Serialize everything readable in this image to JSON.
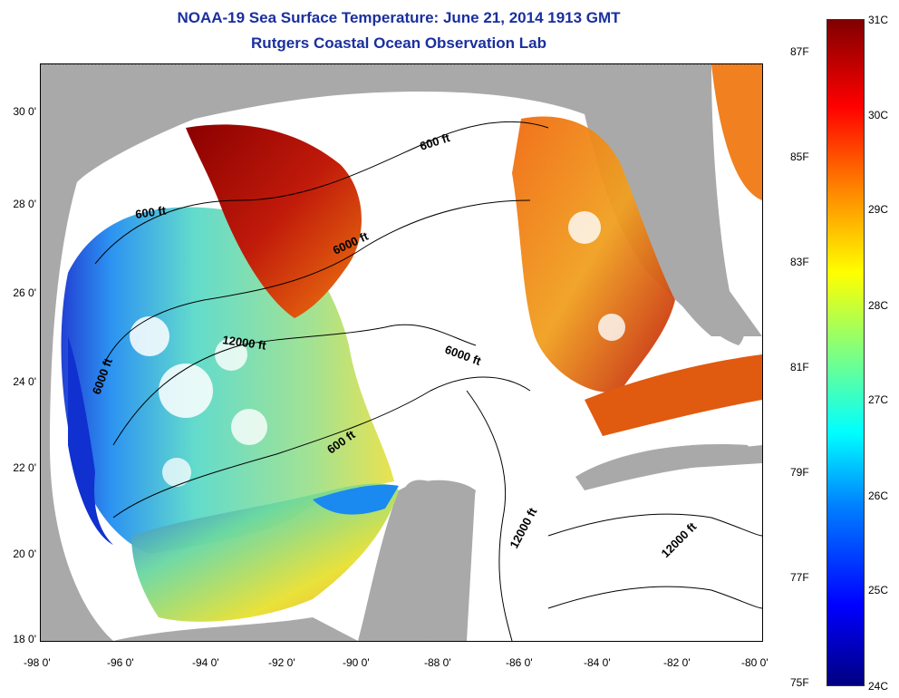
{
  "title": {
    "line1": "NOAA-19 Sea Surface Temperature:  June 21, 2014 1913 GMT",
    "line2": "Rutgers Coastal Ocean Observation Lab"
  },
  "map": {
    "lat_labels": [
      "30 0'",
      "28 0'",
      "26 0'",
      "24 0'",
      "22 0'",
      "20 0'",
      "18 0'"
    ],
    "lon_labels": [
      "-98 0'",
      "-96 0'",
      "-94 0'",
      "-92 0'",
      "-90 0'",
      "-88 0'",
      "-86 0'",
      "-84 0'",
      "-82 0'",
      "-80 0'"
    ],
    "contour_labels": {
      "c600_ne": "600 ft",
      "c600_nw": "600 ft",
      "c600_mid": "600 ft",
      "c6000_n": "6000 ft",
      "c6000_w": "6000 ft",
      "c6000_c": "6000 ft",
      "c12000_w": "12000 ft",
      "c12000_s": "12000 ft",
      "c12000_se": "12000 ft"
    },
    "colors": {
      "land": "#a9a9a9",
      "no_data": "#ffffff",
      "warm": "#c0200a",
      "hot": "#8b0000",
      "orange": "#f07a10",
      "cool": "#55d8c8",
      "cold": "#1030d0"
    }
  },
  "colorbar": {
    "celsius": [
      "31C",
      "30C",
      "29C",
      "28C",
      "27C",
      "26C",
      "25C",
      "24C"
    ],
    "fahrenheit": [
      "87F",
      "85F",
      "83F",
      "81F",
      "79F",
      "77F",
      "75F"
    ]
  }
}
